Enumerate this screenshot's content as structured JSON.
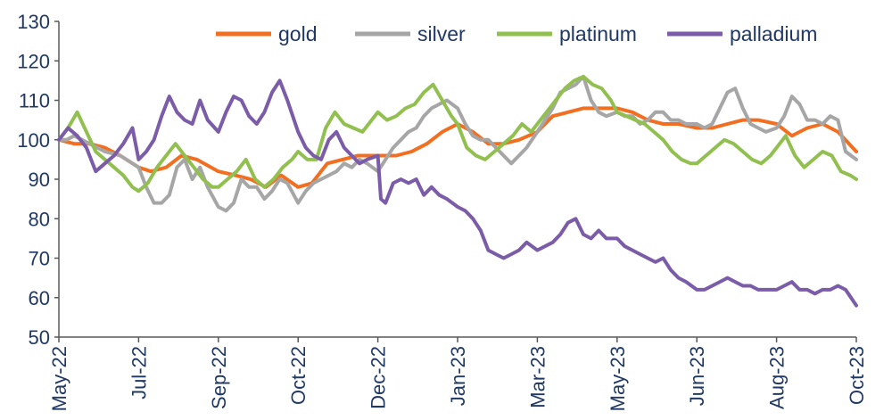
{
  "chart_data": {
    "type": "line",
    "title": "",
    "xlabel": "",
    "ylabel": "",
    "ylim": [
      50,
      130
    ],
    "yticks": [
      50,
      60,
      70,
      80,
      90,
      100,
      110,
      120,
      130
    ],
    "xlim": [
      0,
      520
    ],
    "xticks": [
      {
        "label": "May-22",
        "x": 0
      },
      {
        "label": "Jul-22",
        "x": 52
      },
      {
        "label": "Sep-22",
        "x": 104
      },
      {
        "label": "Oct-22",
        "x": 156
      },
      {
        "label": "Dec-22",
        "x": 208
      },
      {
        "label": "Jan-23",
        "x": 260
      },
      {
        "label": "Mar-23",
        "x": 312
      },
      {
        "label": "May-23",
        "x": 364
      },
      {
        "label": "Jun-23",
        "x": 416
      },
      {
        "label": "Aug-23",
        "x": 468
      },
      {
        "label": "Oct-23",
        "x": 520
      }
    ],
    "grid": false,
    "legend_position": "top",
    "series": [
      {
        "name": "gold",
        "color": "#f26f21",
        "x": [
          0,
          10,
          20,
          30,
          40,
          52,
          60,
          70,
          80,
          90,
          104,
          115,
          125,
          135,
          145,
          156,
          165,
          175,
          185,
          195,
          208,
          220,
          230,
          240,
          250,
          260,
          270,
          280,
          290,
          300,
          312,
          322,
          332,
          342,
          352,
          364,
          374,
          384,
          394,
          404,
          416,
          426,
          436,
          446,
          456,
          468,
          478,
          488,
          498,
          508,
          520
        ],
        "y": [
          100,
          99,
          99,
          98,
          96,
          93,
          92,
          93,
          96,
          95,
          92,
          91,
          90,
          88,
          91,
          88,
          89,
          94,
          95,
          96,
          96,
          96,
          97,
          99,
          102,
          104,
          102,
          99,
          99,
          100,
          102,
          106,
          107,
          108,
          108,
          108,
          107,
          105,
          104,
          104,
          103,
          103,
          104,
          105,
          105,
          104,
          101,
          103,
          104,
          102,
          97
        ]
      },
      {
        "name": "silver",
        "color": "#a6a6a6",
        "x": [
          0,
          5,
          10,
          20,
          30,
          40,
          52,
          57,
          62,
          67,
          72,
          77,
          82,
          87,
          92,
          97,
          104,
          109,
          114,
          119,
          124,
          129,
          134,
          139,
          144,
          149,
          156,
          161,
          166,
          171,
          176,
          181,
          186,
          191,
          196,
          201,
          208,
          213,
          218,
          223,
          228,
          233,
          238,
          243,
          248,
          253,
          260,
          265,
          270,
          275,
          280,
          285,
          290,
          295,
          300,
          305,
          312,
          317,
          322,
          327,
          332,
          337,
          342,
          347,
          352,
          357,
          364,
          369,
          374,
          379,
          384,
          389,
          394,
          399,
          404,
          409,
          416,
          421,
          426,
          431,
          436,
          441,
          446,
          451,
          456,
          461,
          468,
          473,
          478,
          483,
          488,
          493,
          498,
          503,
          508,
          513,
          520
        ],
        "y": [
          100,
          100,
          101,
          99,
          97,
          96,
          93,
          88,
          84,
          84,
          86,
          93,
          95,
          90,
          93,
          88,
          83,
          82,
          84,
          90,
          88,
          88,
          85,
          87,
          90,
          89,
          84,
          87,
          89,
          90,
          91,
          92,
          94,
          93,
          95,
          94,
          92,
          95,
          98,
          100,
          102,
          103,
          106,
          108,
          109,
          110,
          108,
          104,
          101,
          100,
          100,
          98,
          96,
          94,
          96,
          98,
          102,
          105,
          108,
          112,
          113,
          114,
          116,
          110,
          107,
          106,
          107,
          106,
          106,
          104,
          105,
          107,
          107,
          105,
          105,
          104,
          104,
          103,
          104,
          108,
          112,
          113,
          108,
          104,
          103,
          102,
          103,
          106,
          111,
          109,
          105,
          105,
          104,
          106,
          105,
          97,
          95
        ]
      },
      {
        "name": "platinum",
        "color": "#92c050",
        "x": [
          0,
          6,
          12,
          18,
          24,
          30,
          36,
          42,
          48,
          52,
          58,
          64,
          70,
          76,
          82,
          88,
          94,
          100,
          104,
          110,
          116,
          122,
          128,
          134,
          140,
          146,
          152,
          156,
          162,
          168,
          174,
          180,
          186,
          192,
          198,
          204,
          208,
          214,
          220,
          226,
          232,
          238,
          244,
          250,
          256,
          260,
          266,
          272,
          278,
          284,
          290,
          296,
          302,
          308,
          312,
          318,
          324,
          330,
          336,
          342,
          348,
          354,
          360,
          364,
          370,
          376,
          382,
          388,
          394,
          400,
          406,
          412,
          416,
          422,
          428,
          434,
          440,
          446,
          452,
          458,
          464,
          468,
          474,
          480,
          486,
          492,
          498,
          504,
          510,
          516,
          520
        ],
        "y": [
          100,
          103,
          107,
          102,
          97,
          95,
          93,
          91,
          88,
          87,
          89,
          93,
          96,
          99,
          96,
          93,
          90,
          88,
          88,
          90,
          92,
          95,
          90,
          88,
          90,
          93,
          95,
          97,
          95,
          95,
          103,
          107,
          104,
          103,
          102,
          105,
          107,
          105,
          106,
          108,
          109,
          112,
          114,
          110,
          106,
          104,
          98,
          96,
          95,
          97,
          99,
          101,
          104,
          102,
          104,
          107,
          110,
          113,
          115,
          116,
          114,
          113,
          110,
          107,
          106,
          105,
          104,
          102,
          100,
          97,
          95,
          94,
          94,
          96,
          98,
          100,
          99,
          97,
          95,
          94,
          96,
          98,
          101,
          96,
          93,
          95,
          97,
          96,
          92,
          91,
          90
        ]
      },
      {
        "name": "palladium",
        "color": "#7b5ca8",
        "x": [
          0,
          6,
          12,
          18,
          24,
          30,
          36,
          42,
          48,
          52,
          57,
          62,
          67,
          72,
          77,
          82,
          87,
          92,
          97,
          104,
          109,
          114,
          119,
          124,
          129,
          134,
          139,
          144,
          149,
          156,
          161,
          166,
          171,
          176,
          181,
          186,
          191,
          196,
          201,
          208,
          210,
          213,
          218,
          223,
          228,
          233,
          238,
          243,
          248,
          253,
          260,
          265,
          270,
          275,
          280,
          285,
          290,
          295,
          300,
          305,
          312,
          317,
          322,
          327,
          332,
          337,
          342,
          347,
          352,
          357,
          364,
          369,
          374,
          379,
          384,
          389,
          394,
          399,
          404,
          409,
          416,
          421,
          426,
          431,
          436,
          441,
          446,
          451,
          456,
          461,
          468,
          473,
          478,
          483,
          488,
          493,
          498,
          503,
          508,
          513,
          520
        ],
        "y": [
          100,
          103,
          101,
          98,
          92,
          94,
          96,
          99,
          103,
          95,
          97,
          100,
          106,
          111,
          107,
          105,
          104,
          110,
          105,
          102,
          107,
          111,
          110,
          106,
          104,
          107,
          112,
          115,
          110,
          102,
          98,
          96,
          95,
          100,
          102,
          98,
          96,
          94,
          95,
          96,
          85,
          84,
          89,
          90,
          89,
          90,
          86,
          88,
          86,
          85,
          83,
          82,
          80,
          77,
          72,
          71,
          70,
          71,
          72,
          74,
          72,
          73,
          74,
          76,
          79,
          80,
          76,
          75,
          77,
          75,
          75,
          73,
          72,
          71,
          70,
          69,
          70,
          67,
          65,
          64,
          62,
          62,
          63,
          64,
          65,
          64,
          63,
          63,
          62,
          62,
          62,
          63,
          64,
          62,
          62,
          61,
          62,
          62,
          63,
          62,
          58
        ]
      }
    ]
  }
}
